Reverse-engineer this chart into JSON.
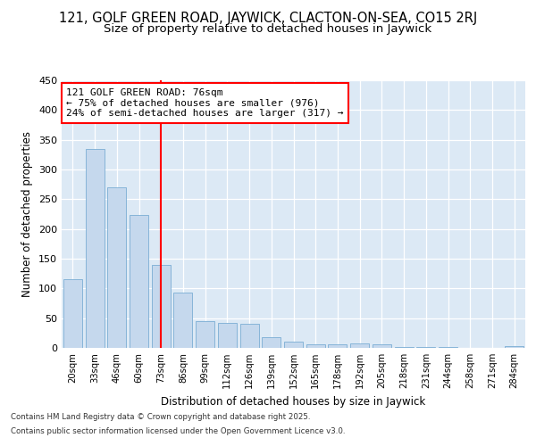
{
  "title": "121, GOLF GREEN ROAD, JAYWICK, CLACTON-ON-SEA, CO15 2RJ",
  "subtitle": "Size of property relative to detached houses in Jaywick",
  "xlabel": "Distribution of detached houses by size in Jaywick",
  "ylabel": "Number of detached properties",
  "bar_labels": [
    "20sqm",
    "33sqm",
    "46sqm",
    "60sqm",
    "73sqm",
    "86sqm",
    "99sqm",
    "112sqm",
    "126sqm",
    "139sqm",
    "152sqm",
    "165sqm",
    "178sqm",
    "192sqm",
    "205sqm",
    "218sqm",
    "231sqm",
    "244sqm",
    "258sqm",
    "271sqm",
    "284sqm"
  ],
  "bar_values": [
    116,
    335,
    270,
    224,
    140,
    93,
    45,
    42,
    40,
    18,
    10,
    6,
    6,
    7,
    6,
    2,
    2,
    1,
    0,
    0,
    3
  ],
  "bar_color": "#c5d8ed",
  "bar_edgecolor": "#7aadd4",
  "annotation_text_line1": "121 GOLF GREEN ROAD: 76sqm",
  "annotation_text_line2": "← 75% of detached houses are smaller (976)",
  "annotation_text_line3": "24% of semi-detached houses are larger (317) →",
  "annotation_line_color": "red",
  "ylim": [
    0,
    450
  ],
  "yticks": [
    0,
    50,
    100,
    150,
    200,
    250,
    300,
    350,
    400,
    450
  ],
  "bg_color": "#dce9f5",
  "footer_line1": "Contains HM Land Registry data © Crown copyright and database right 2025.",
  "footer_line2": "Contains public sector information licensed under the Open Government Licence v3.0.",
  "title_fontsize": 10.5,
  "subtitle_fontsize": 9.5,
  "red_line_x": 4.0
}
